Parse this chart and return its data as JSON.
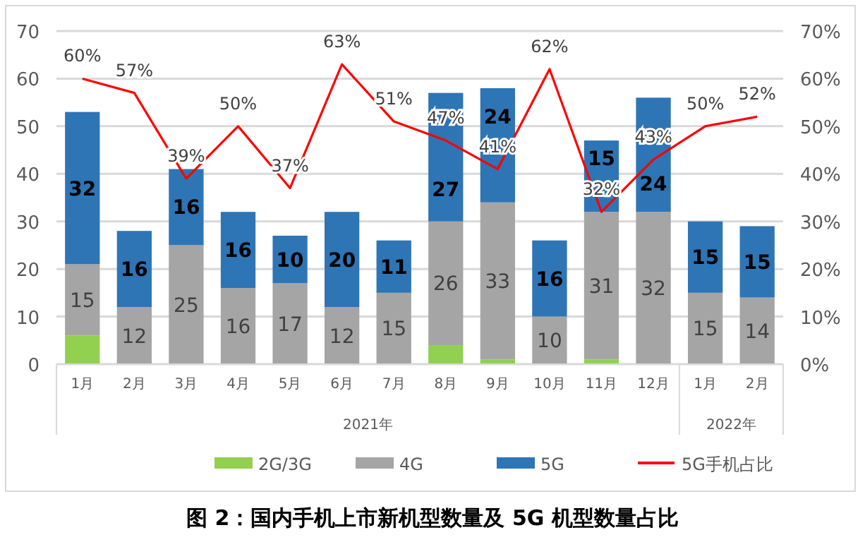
{
  "chart_data": {
    "type": "bar",
    "stacked": true,
    "title": "图 2：国内手机上市新机型数量及 5G 机型数量占比",
    "categories": [
      "1月",
      "2月",
      "3月",
      "4月",
      "5月",
      "6月",
      "7月",
      "8月",
      "9月",
      "10月",
      "11月",
      "12月",
      "1月",
      "2月"
    ],
    "annotations": [
      "2021年",
      "2022年"
    ],
    "series": [
      {
        "name": "2G/3G",
        "color": "#92d050",
        "values": [
          6,
          0,
          0,
          0,
          0,
          0,
          0,
          4,
          1,
          0,
          1,
          0,
          0,
          0
        ]
      },
      {
        "name": "4G",
        "color": "#a5a5a5",
        "values": [
          15,
          12,
          25,
          16,
          17,
          12,
          15,
          26,
          33,
          10,
          31,
          32,
          15,
          14
        ],
        "value_labels": [
          "15",
          "12",
          "25",
          "16",
          "17",
          "12",
          "15",
          "26",
          "33",
          "10",
          "31",
          "32",
          "15",
          "14"
        ]
      },
      {
        "name": "5G",
        "color": "#2e75b6",
        "values": [
          32,
          16,
          16,
          16,
          10,
          20,
          11,
          27,
          24,
          16,
          15,
          24,
          15,
          15
        ],
        "value_labels": [
          "32",
          "16",
          "16",
          "16",
          "10",
          "20",
          "11",
          "27",
          "24",
          "16",
          "15",
          "24",
          "15",
          "15"
        ]
      },
      {
        "name": "5G手机占比",
        "type": "line",
        "axis": "y2",
        "color": "#ff0000",
        "values": [
          60,
          57,
          39,
          50,
          37,
          63,
          51,
          47,
          41,
          62,
          32,
          43,
          50,
          52
        ],
        "value_labels": [
          "60%",
          "57%",
          "39%",
          "50%",
          "37%",
          "63%",
          "51%",
          "47%",
          "41%",
          "62%",
          "32%",
          "43%",
          "50%",
          "52%"
        ]
      }
    ],
    "ylim": [
      0,
      70
    ],
    "yticks": [
      0,
      10,
      20,
      30,
      40,
      50,
      60,
      70
    ],
    "y2lim": [
      0,
      70
    ],
    "y2ticks": [
      {
        "value": 0,
        "label": "0%"
      },
      {
        "value": 10,
        "label": "10%"
      },
      {
        "value": 20,
        "label": "20%"
      },
      {
        "value": 30,
        "label": "30%"
      },
      {
        "value": 40,
        "label": "40%"
      },
      {
        "value": 50,
        "label": "50%"
      },
      {
        "value": 60,
        "label": "60%"
      },
      {
        "value": 70,
        "label": "70%"
      }
    ],
    "grid": "y",
    "legend": "bottom",
    "marker": "none"
  }
}
